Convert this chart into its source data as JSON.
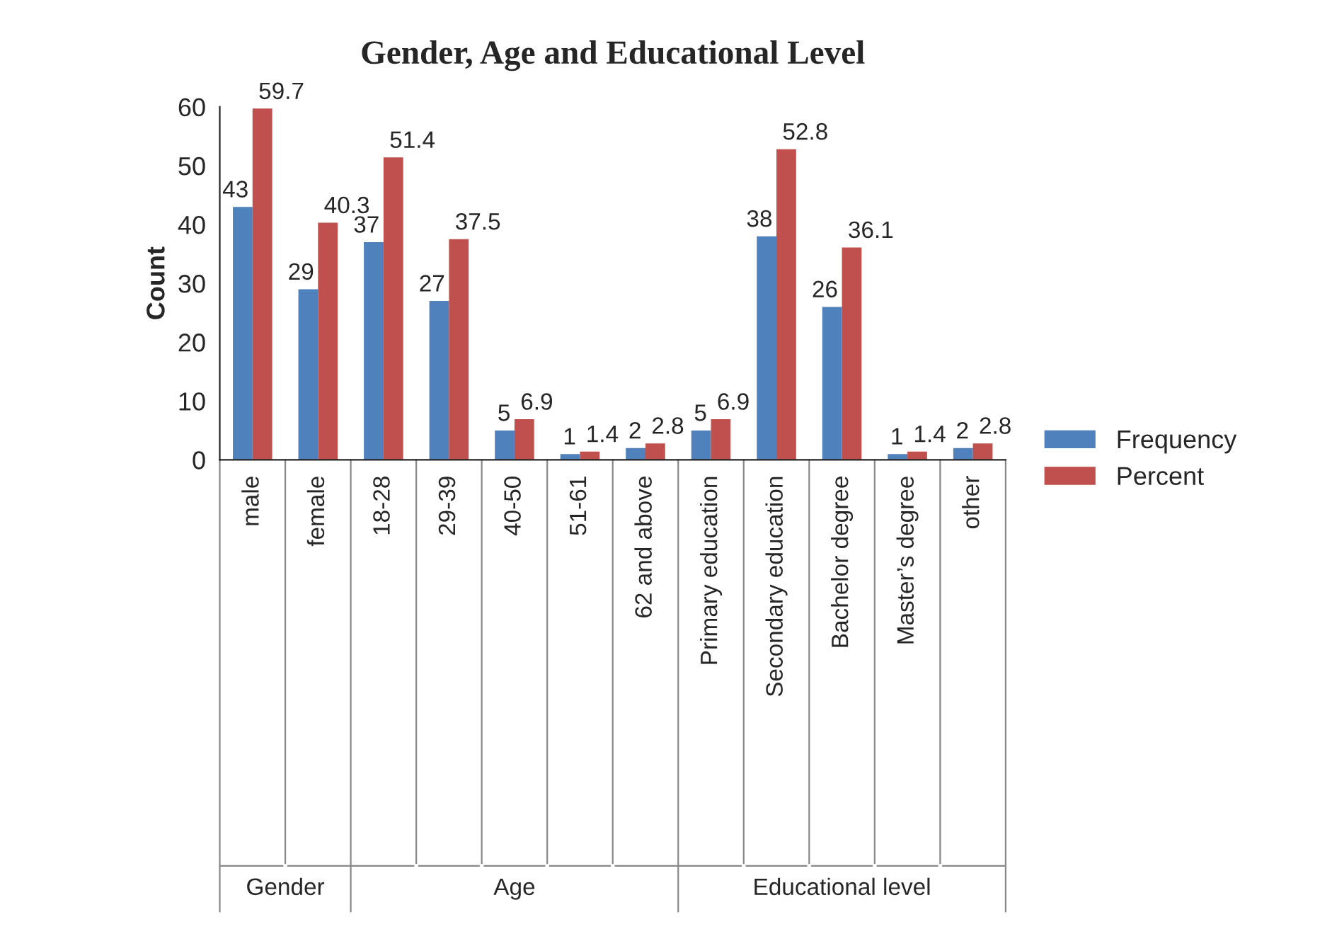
{
  "chart_data": {
    "type": "bar",
    "title": "Gender, Age and Educational Level",
    "ylabel": "Count",
    "categories": [
      "male",
      "female",
      "18-28",
      "29-39",
      "40-50",
      "51-61",
      "62 and above",
      "Primary education",
      "Secondary education",
      "Bachelor degree",
      "Master’s degree",
      "other"
    ],
    "series": [
      {
        "name": "Frequency",
        "color": "#4f81bd",
        "values": [
          43,
          29,
          37,
          27,
          5,
          1,
          2,
          5,
          38,
          26,
          1,
          2
        ]
      },
      {
        "name": "Percent",
        "color": "#c0504d",
        "values": [
          59.7,
          40.3,
          51.4,
          37.5,
          6.9,
          1.4,
          2.8,
          6.9,
          52.8,
          36.1,
          1.4,
          2.8
        ]
      }
    ],
    "ylim": [
      0,
      60
    ],
    "yticks": [
      0,
      10,
      20,
      30,
      40,
      50,
      60
    ],
    "data_labels": true,
    "grid": false,
    "legend": "right",
    "annotations": [
      "Gender",
      "Age",
      "Educational level"
    ]
  }
}
